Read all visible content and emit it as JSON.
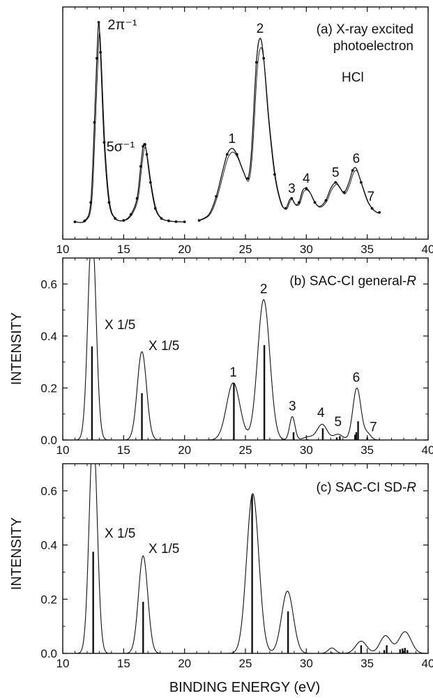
{
  "figure": {
    "y_axis_label": "INTENSITY",
    "x_axis_label": "BINDING ENERGY (eV)"
  },
  "chart_data": [
    {
      "type": "line",
      "title": "(a) X-ray excited photoelectron",
      "title_line1": "(a) X-ray excited",
      "title_line2": "photoelectron",
      "molecule_label": "HCl",
      "xlim": [
        10,
        40
      ],
      "x_ticks": [
        10,
        15,
        20,
        25,
        30,
        35,
        40
      ],
      "y_ticks": [],
      "grid": false,
      "series": [
        {
          "segments": [
            {
              "x": [
                11.0,
                11.8,
                12.3,
                12.6,
                12.8,
                12.95,
                13.1,
                13.4,
                13.8,
                14.3,
                15.0,
                15.6,
                16.1,
                16.4,
                16.6,
                16.75,
                16.9,
                17.2,
                17.6,
                18.1,
                18.7,
                19.3,
                20.0
              ],
              "y": [
                0.3,
                0.8,
                10,
                50,
                82,
                100,
                85,
                40,
                10,
                2,
                1,
                4,
                12,
                28,
                38,
                39,
                34,
                20,
                7,
                2,
                0.8,
                0.4,
                0.3
              ]
            },
            {
              "x": [
                21.2,
                22.0,
                22.6,
                23.1,
                23.5,
                23.9,
                24.3,
                24.8,
                25.2,
                25.5,
                25.9,
                26.2,
                26.5,
                26.9,
                27.4,
                27.9,
                28.3,
                28.6,
                28.8,
                29.1,
                29.4,
                29.7,
                30.0,
                30.3,
                30.7,
                31.1,
                31.6,
                32.0,
                32.4,
                32.7,
                33.1,
                33.5,
                33.8,
                34.1,
                34.5,
                35.0,
                35.4,
                35.8,
                36.0
              ],
              "y": [
                1,
                4,
                13,
                25,
                34,
                37,
                34,
                26,
                22,
                36,
                80,
                92,
                82,
                52,
                24,
                10,
                7,
                11,
                12,
                9,
                10,
                16,
                17,
                15,
                10,
                8,
                11,
                17,
                20,
                18,
                15,
                20,
                26,
                27,
                20,
                11,
                7,
                5,
                5
              ]
            }
          ]
        }
      ],
      "annotations": [
        {
          "x": 13.0,
          "y": 100,
          "text": "2π⁻¹"
        },
        {
          "x": 16.6,
          "y": 39,
          "text": "5σ⁻¹"
        },
        {
          "x": 23.9,
          "y": 37,
          "text": "1"
        },
        {
          "x": 26.2,
          "y": 92,
          "text": "2"
        },
        {
          "x": 28.8,
          "y": 12,
          "text": "3"
        },
        {
          "x": 30.0,
          "y": 17,
          "text": "4"
        },
        {
          "x": 32.4,
          "y": 20,
          "text": "5"
        },
        {
          "x": 34.1,
          "y": 27,
          "text": "6"
        },
        {
          "x": 35.3,
          "y": 8,
          "text": "7"
        }
      ]
    },
    {
      "type": "line",
      "title": "(b) SAC-CI general-R",
      "title_prefix": "(b) SAC-CI general-",
      "title_italic": "R",
      "xlim": [
        10,
        40
      ],
      "ylim": [
        0,
        0.7
      ],
      "x_ticks": [
        10,
        15,
        20,
        25,
        30,
        35,
        40
      ],
      "y_ticks": [
        0.0,
        0.2,
        0.4,
        0.6
      ],
      "y_tick_labels": [
        "0.0",
        "0.2",
        "0.4",
        "0.6"
      ],
      "grid": false,
      "peaks": [
        {
          "x": 12.4,
          "height": 0.82,
          "width": 0.33
        },
        {
          "x": 16.5,
          "height": 0.34,
          "width": 0.38
        },
        {
          "x": 24.0,
          "height": 0.22,
          "width": 0.55
        },
        {
          "x": 26.5,
          "height": 0.54,
          "width": 0.5
        },
        {
          "x": 28.85,
          "height": 0.09,
          "width": 0.22
        },
        {
          "x": 30.2,
          "height": 0.012,
          "width": 0.45
        },
        {
          "x": 31.3,
          "height": 0.06,
          "width": 0.4
        },
        {
          "x": 32.6,
          "height": 0.022,
          "width": 0.38
        },
        {
          "x": 34.15,
          "height": 0.2,
          "width": 0.33
        },
        {
          "x": 35.0,
          "height": 0.025,
          "width": 0.3
        }
      ],
      "sticks": [
        {
          "x": 12.4,
          "y": 0.36
        },
        {
          "x": 16.5,
          "y": 0.18
        },
        {
          "x": 24.05,
          "y": 0.22
        },
        {
          "x": 26.55,
          "y": 0.365
        },
        {
          "x": 28.95,
          "y": 0.03
        },
        {
          "x": 30.1,
          "y": 0.003
        },
        {
          "x": 31.35,
          "y": 0.045
        },
        {
          "x": 32.5,
          "y": 0.01
        },
        {
          "x": 32.75,
          "y": 0.015
        },
        {
          "x": 34.0,
          "y": 0.02
        },
        {
          "x": 34.1,
          "y": 0.03
        },
        {
          "x": 34.25,
          "y": 0.072
        },
        {
          "x": 35.0,
          "y": 0.01
        }
      ],
      "annotations": [
        {
          "x": 24.0,
          "y": 0.22,
          "text": "1"
        },
        {
          "x": 26.5,
          "y": 0.54,
          "text": "2"
        },
        {
          "x": 28.85,
          "y": 0.09,
          "text": "3"
        },
        {
          "x": 31.2,
          "y": 0.065,
          "text": "4"
        },
        {
          "x": 32.6,
          "y": 0.03,
          "text": "5"
        },
        {
          "x": 34.1,
          "y": 0.2,
          "text": "6"
        },
        {
          "x": 35.5,
          "y": 0.01,
          "text": "7"
        }
      ],
      "scale_labels": [
        "X 1/5",
        "X 1/5"
      ]
    },
    {
      "type": "line",
      "title": "(c) SAC-CI SD-R",
      "title_prefix": "(c) SAC-CI SD-",
      "title_italic": "R",
      "xlim": [
        10,
        40
      ],
      "ylim": [
        0,
        0.7
      ],
      "x_ticks": [
        10,
        15,
        20,
        25,
        30,
        35,
        40
      ],
      "y_ticks": [
        0.0,
        0.2,
        0.4,
        0.6
      ],
      "y_tick_labels": [
        "0.0",
        "0.2",
        "0.4",
        "0.6"
      ],
      "grid": false,
      "peaks": [
        {
          "x": 12.5,
          "height": 0.82,
          "width": 0.33
        },
        {
          "x": 16.6,
          "height": 0.36,
          "width": 0.38
        },
        {
          "x": 25.6,
          "height": 0.59,
          "width": 0.5
        },
        {
          "x": 28.45,
          "height": 0.23,
          "width": 0.48
        },
        {
          "x": 32.1,
          "height": 0.02,
          "width": 0.3
        },
        {
          "x": 34.5,
          "height": 0.045,
          "width": 0.45
        },
        {
          "x": 36.5,
          "height": 0.065,
          "width": 0.45
        },
        {
          "x": 38.1,
          "height": 0.08,
          "width": 0.5
        }
      ],
      "sticks": [
        {
          "x": 12.5,
          "y": 0.375
        },
        {
          "x": 16.6,
          "y": 0.19
        },
        {
          "x": 25.55,
          "y": 0.585
        },
        {
          "x": 28.5,
          "y": 0.155
        },
        {
          "x": 32.1,
          "y": 0.004
        },
        {
          "x": 34.5,
          "y": 0.03
        },
        {
          "x": 36.4,
          "y": 0.012
        },
        {
          "x": 36.6,
          "y": 0.03
        },
        {
          "x": 37.7,
          "y": 0.015
        },
        {
          "x": 37.9,
          "y": 0.018
        },
        {
          "x": 38.1,
          "y": 0.02
        },
        {
          "x": 38.3,
          "y": 0.012
        }
      ],
      "annotations": [],
      "scale_labels": [
        "X 1/5",
        "X 1/5"
      ]
    }
  ]
}
